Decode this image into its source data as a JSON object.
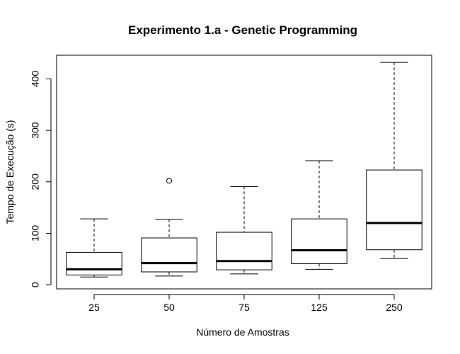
{
  "chart_data": {
    "type": "boxplot",
    "title": "Experimento 1.a - Genetic Programming",
    "xlabel": "Número de Amostras",
    "ylabel": "Tempo de Execução (s)",
    "categories": [
      "25",
      "50",
      "75",
      "125",
      "250"
    ],
    "yticks": [
      0,
      100,
      200,
      300,
      400
    ],
    "ylim": [
      -8,
      446
    ],
    "boxes": [
      {
        "category": "25",
        "min": 15,
        "q1": 19,
        "median": 30,
        "q3": 63,
        "max": 128,
        "outliers": []
      },
      {
        "category": "50",
        "min": 17,
        "q1": 25,
        "median": 42,
        "q3": 91,
        "max": 127,
        "outliers": [
          202
        ]
      },
      {
        "category": "75",
        "min": 21,
        "q1": 29,
        "median": 46,
        "q3": 102,
        "max": 191,
        "outliers": []
      },
      {
        "category": "125",
        "min": 30,
        "q1": 41,
        "median": 67,
        "q3": 128,
        "max": 241,
        "outliers": []
      },
      {
        "category": "250",
        "min": 51,
        "q1": 68,
        "median": 120,
        "q3": 223,
        "max": 432,
        "outliers": []
      }
    ],
    "grid": false,
    "legend": "none",
    "colors": {
      "stroke": "#000000",
      "fill": "#ffffff"
    }
  }
}
